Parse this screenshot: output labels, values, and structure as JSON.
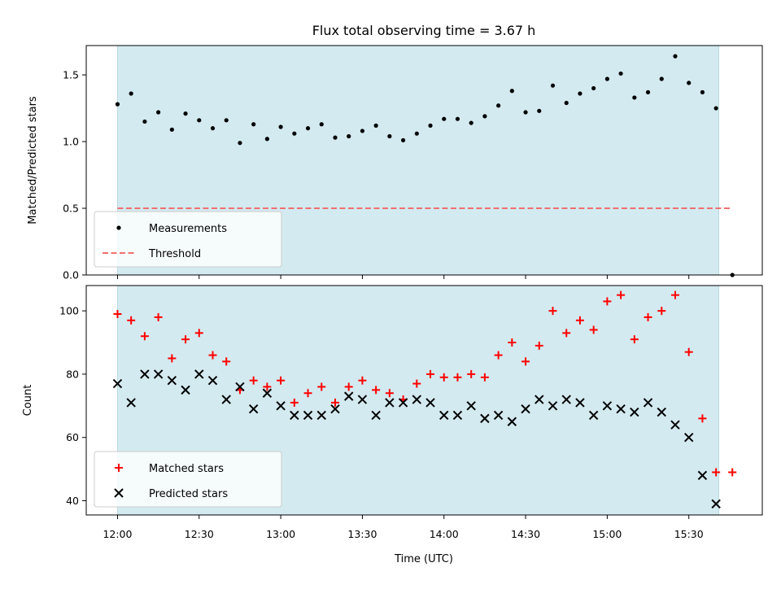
{
  "chart_data": {
    "title": "Flux total observing time = 3.67 h",
    "xlabel": "Time (UTC)",
    "x_tick_labels": [
      "12:00",
      "12:30",
      "13:00",
      "13:30",
      "14:00",
      "14:30",
      "15:00",
      "15:30"
    ],
    "x_tick_minutes": [
      0,
      30,
      60,
      90,
      120,
      150,
      180,
      210
    ],
    "xlim_minutes": [
      -11.5,
      237
    ],
    "shaded_span_minutes": [
      0,
      221
    ],
    "colors": {
      "shade": "#d3eaf0",
      "threshold": "#f07070",
      "matched": "#ff0000",
      "predicted": "#000000",
      "measurement": "#000000"
    },
    "panels": [
      {
        "type": "scatter",
        "ylabel": "Matched/Predicted stars",
        "ylim": [
          0,
          1.72
        ],
        "y_ticks": [
          0.0,
          0.5,
          1.0,
          1.5
        ],
        "y_tick_labels": [
          "0.0",
          "0.5",
          "1.0",
          "1.5"
        ],
        "legend": {
          "position": "lower-left",
          "entries": [
            "Measurements",
            "Threshold"
          ]
        },
        "threshold": {
          "name": "Threshold",
          "y": 0.5,
          "x_range_minutes": [
            0,
            226
          ]
        },
        "series": [
          {
            "name": "Measurements",
            "marker": "dot",
            "x": [
              0,
              5,
              10,
              15,
              20,
              25,
              30,
              35,
              40,
              45,
              50,
              55,
              60,
              65,
              70,
              75,
              80,
              85,
              90,
              95,
              100,
              105,
              110,
              115,
              120,
              125,
              130,
              135,
              140,
              145,
              150,
              155,
              160,
              165,
              170,
              175,
              180,
              185,
              190,
              195,
              200,
              205,
              210,
              215,
              220,
              226
            ],
            "y": [
              1.28,
              1.36,
              1.15,
              1.22,
              1.09,
              1.21,
              1.16,
              1.1,
              1.16,
              0.99,
              1.13,
              1.02,
              1.11,
              1.06,
              1.1,
              1.13,
              1.03,
              1.04,
              1.08,
              1.12,
              1.04,
              1.01,
              1.06,
              1.12,
              1.17,
              1.17,
              1.14,
              1.19,
              1.27,
              1.38,
              1.22,
              1.23,
              1.42,
              1.29,
              1.36,
              1.4,
              1.47,
              1.51,
              1.33,
              1.37,
              1.47,
              1.64,
              1.44,
              1.37,
              1.25,
              0.0
            ]
          }
        ]
      },
      {
        "type": "scatter",
        "ylabel": "Count",
        "ylim": [
          35.5,
          108
        ],
        "y_ticks": [
          40,
          60,
          80,
          100
        ],
        "y_tick_labels": [
          "40",
          "60",
          "80",
          "100"
        ],
        "legend": {
          "position": "lower-left",
          "entries": [
            "Matched stars",
            "Predicted stars"
          ]
        },
        "series": [
          {
            "name": "Matched stars",
            "marker": "plus",
            "x": [
              0,
              5,
              10,
              15,
              20,
              25,
              30,
              35,
              40,
              45,
              50,
              55,
              60,
              65,
              70,
              75,
              80,
              85,
              90,
              95,
              100,
              105,
              110,
              115,
              120,
              125,
              130,
              135,
              140,
              145,
              150,
              155,
              160,
              165,
              170,
              175,
              180,
              185,
              190,
              195,
              200,
              205,
              210,
              215,
              220,
              226
            ],
            "y": [
              99,
              97,
              92,
              98,
              85,
              91,
              93,
              86,
              84,
              75,
              78,
              76,
              78,
              71,
              74,
              76,
              71,
              76,
              78,
              75,
              74,
              72,
              77,
              80,
              79,
              79,
              80,
              79,
              86,
              90,
              84,
              89,
              100,
              93,
              97,
              94,
              103,
              105,
              91,
              98,
              100,
              105,
              87,
              66,
              49,
              49
            ]
          },
          {
            "name": "Predicted stars",
            "marker": "cross",
            "x": [
              0,
              5,
              10,
              15,
              20,
              25,
              30,
              35,
              40,
              45,
              50,
              55,
              60,
              65,
              70,
              75,
              80,
              85,
              90,
              95,
              100,
              105,
              110,
              115,
              120,
              125,
              130,
              135,
              140,
              145,
              150,
              155,
              160,
              165,
              170,
              175,
              180,
              185,
              190,
              195,
              200,
              205,
              210,
              215,
              220
            ],
            "y": [
              77,
              71,
              80,
              80,
              78,
              75,
              80,
              78,
              72,
              76,
              69,
              74,
              70,
              67,
              67,
              67,
              69,
              73,
              72,
              67,
              71,
              71,
              72,
              71,
              67,
              67,
              70,
              66,
              67,
              65,
              69,
              72,
              70,
              72,
              71,
              67,
              70,
              69,
              68,
              71,
              68,
              64,
              60,
              48,
              39
            ]
          }
        ]
      }
    ]
  }
}
